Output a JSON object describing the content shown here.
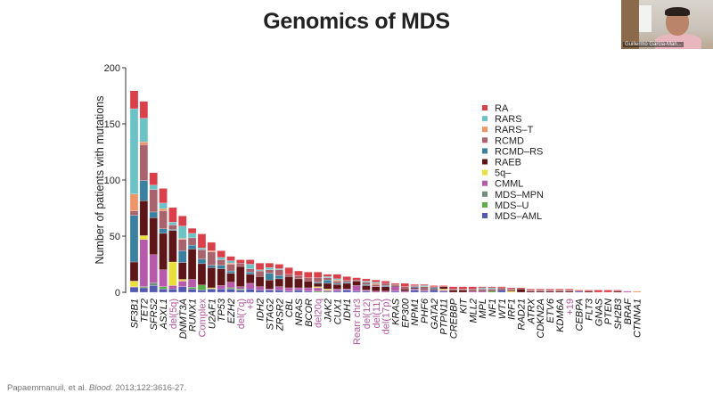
{
  "slide": {
    "title": "Genomics of MDS",
    "citation_prefix": "Papaemmanuil, et al. ",
    "citation_journal": "Blood.",
    "citation_suffix": " 2013;122:3616-27."
  },
  "video": {
    "participant_name": "Guillermo Garcia-Man..."
  },
  "chart_data": {
    "type": "bar",
    "stacked": true,
    "ylabel": "Number of patients with mutations",
    "xlabel": "",
    "ylim": [
      0,
      200
    ],
    "yticks": [
      0,
      50,
      100,
      150,
      200
    ],
    "legend_position": "top-right",
    "categories": [
      "SF3B1",
      "TET2",
      "SFRS2",
      "ASXL1",
      "del(5q)",
      "DNMT3A",
      "RUNX1",
      "Complex",
      "U2AF1",
      "TP53",
      "EZH2",
      "del(7q)",
      "+8",
      "IDH2",
      "STAG2",
      "ZRSR2",
      "CBL",
      "NRAS",
      "BCOR",
      "del20q",
      "JAK2",
      "CUX1",
      "IDH1",
      "Rearr chr3",
      "del(12)",
      "del(11)",
      "del(17p)",
      "KRAS",
      "EP300",
      "NPM1",
      "PHF6",
      "GATA2",
      "PTPN11",
      "CREBBP",
      "KIT",
      "MLL2",
      "MPL",
      "NF1",
      "WT1",
      "IRF1",
      "RAD21",
      "ATRX",
      "CDKN2A",
      "ETV6",
      "KDM6A",
      "+19",
      "CEBPA",
      "FLT3",
      "GNAS",
      "PTEN",
      "SH2B3",
      "BRAF",
      "CTNNA1"
    ],
    "cytogenetic_categories": [
      "del(5q)",
      "Complex",
      "del(7q)",
      "+8",
      "del20q",
      "Rearr chr3",
      "del(12)",
      "del(11)",
      "del(17p)",
      "+19"
    ],
    "cytogenetic_label_color": "#b0589e",
    "series": [
      {
        "name": "RA",
        "color": "#d9404a",
        "values": [
          16,
          15,
          11,
          13,
          13,
          9,
          4.5,
          12.5,
          7.5,
          6,
          4,
          3,
          4,
          6,
          4,
          4,
          6,
          4,
          5,
          5,
          2,
          4,
          3,
          2,
          2,
          2,
          2,
          1,
          3,
          1,
          1,
          1,
          1,
          2,
          2,
          2,
          1,
          1,
          1,
          1,
          1,
          1,
          1,
          1,
          1,
          1,
          1,
          1,
          2,
          2,
          1,
          0,
          0
        ]
      },
      {
        "name": "RARS",
        "color": "#6cc3c6",
        "values": [
          76,
          21,
          4,
          5,
          2.5,
          11,
          4,
          1.5,
          0,
          2,
          2,
          0,
          4,
          1,
          2,
          1,
          0,
          0,
          0,
          0,
          1,
          1,
          0,
          0,
          1,
          1,
          0,
          0,
          0,
          0,
          1,
          0,
          0,
          0,
          0,
          0,
          1,
          1,
          0,
          0,
          0,
          0,
          0,
          0,
          0,
          0,
          0,
          0,
          0,
          0,
          0,
          0,
          0
        ]
      },
      {
        "name": "RARS–T",
        "color": "#ee9466",
        "values": [
          15,
          2.5,
          0,
          2,
          0,
          1,
          0,
          0,
          1,
          0,
          1,
          0,
          0,
          0,
          0,
          0,
          0,
          0,
          0,
          0,
          0,
          1,
          0,
          0,
          0,
          1,
          0,
          0,
          0,
          0,
          0,
          0,
          0,
          0,
          0,
          0,
          0,
          0,
          0,
          0,
          0,
          0,
          0,
          0,
          0,
          0,
          0,
          0,
          0,
          0,
          0,
          0,
          1
        ]
      },
      {
        "name": "RCMD",
        "color": "#a8636d",
        "values": [
          4,
          32,
          20,
          16,
          4,
          10,
          6.5,
          8.5,
          12,
          5,
          6,
          3,
          3,
          5,
          3,
          5,
          2,
          3,
          3,
          4,
          2,
          2,
          2,
          1,
          2,
          2,
          2,
          1,
          2,
          1,
          2,
          1,
          0,
          1,
          1,
          1,
          1,
          1,
          1,
          1,
          0,
          1,
          1,
          1,
          1,
          1,
          0,
          0,
          0,
          0,
          0,
          0,
          0
        ]
      },
      {
        "name": "RCMD–RS",
        "color": "#3a80a0",
        "values": [
          41.5,
          18,
          5,
          4,
          1,
          10.5,
          3.5,
          4,
          2,
          3,
          2,
          0,
          2,
          0,
          6,
          3,
          0,
          0,
          0,
          1,
          3,
          1,
          1,
          0,
          1,
          0,
          1,
          0,
          0,
          1,
          0,
          1,
          0,
          0,
          0,
          0,
          0,
          0,
          0,
          0,
          0,
          0,
          0,
          0,
          0,
          0,
          0,
          0,
          0,
          0,
          0,
          0,
          0
        ]
      },
      {
        "name": "RAEB",
        "color": "#5e1518",
        "values": [
          17,
          31,
          33,
          32.5,
          28,
          15,
          27,
          19,
          18,
          15,
          8,
          18,
          8,
          9,
          8,
          7,
          10,
          8,
          6,
          3,
          5,
          4,
          5,
          4,
          4,
          4,
          4,
          1,
          2,
          1,
          1,
          1,
          2,
          2,
          2,
          1,
          1,
          1,
          1,
          1,
          3,
          1,
          1,
          1,
          1,
          1,
          0,
          1,
          0,
          0,
          1,
          0,
          0
        ]
      },
      {
        "name": "5q–",
        "color": "#e8de3c",
        "values": [
          5,
          3.5,
          0,
          0,
          21,
          1.5,
          0,
          0,
          1,
          0,
          0,
          0,
          0,
          0,
          0,
          0,
          0,
          0,
          0,
          1,
          1,
          0,
          0,
          0,
          0,
          0,
          0,
          0,
          0,
          0,
          0,
          0,
          1,
          0,
          0,
          0,
          0,
          0,
          0,
          1,
          0,
          0,
          0,
          0,
          0,
          0,
          0,
          0,
          0,
          0,
          0,
          0,
          0
        ]
      },
      {
        "name": "CMML",
        "color": "#b85aab",
        "values": [
          0.5,
          42,
          25,
          15,
          3,
          5,
          7,
          0,
          0,
          3,
          5,
          2,
          5,
          3,
          1,
          3,
          3,
          2,
          3,
          3,
          1,
          2,
          1,
          5,
          1,
          1,
          1,
          4,
          1,
          1,
          1,
          0,
          1,
          0,
          0,
          1,
          1,
          0,
          0,
          0,
          0,
          0,
          0,
          0,
          0,
          0,
          0,
          0,
          0,
          0,
          0,
          1,
          0
        ]
      },
      {
        "name": "MDS–MPN",
        "color": "#6f8f7c",
        "values": [
          0,
          0,
          2.5,
          0,
          0,
          0,
          0,
          0,
          0,
          0,
          0,
          0,
          0,
          0,
          0,
          0,
          0,
          0,
          0,
          0,
          1,
          0,
          0,
          0,
          0,
          0,
          0,
          0,
          0,
          0,
          0,
          0,
          0,
          0,
          0,
          0,
          0,
          0,
          0,
          0,
          0,
          0,
          0,
          0,
          0,
          0,
          0,
          0,
          0,
          0,
          0,
          0,
          0
        ]
      },
      {
        "name": "MDS–U",
        "color": "#5aaf48",
        "values": [
          0,
          1,
          0,
          2,
          0,
          0,
          1.5,
          4.5,
          0,
          0,
          1,
          1,
          0,
          0,
          0,
          0,
          0,
          0,
          0,
          1,
          0,
          0,
          0,
          0,
          0,
          0,
          0,
          0,
          0,
          0,
          0,
          0,
          0,
          0,
          0,
          0,
          0,
          1,
          0,
          0,
          0,
          0,
          0,
          0,
          0,
          0,
          0,
          0,
          0,
          0,
          0,
          0,
          0
        ]
      },
      {
        "name": "MDS–AML",
        "color": "#5359b0",
        "values": [
          4.5,
          4,
          6,
          3,
          3,
          5,
          3,
          2,
          3,
          3,
          3,
          2,
          3,
          2,
          2,
          2,
          1,
          2,
          1,
          0,
          0,
          1,
          2,
          1,
          1,
          0,
          0,
          1,
          0,
          2,
          1,
          2,
          1,
          0,
          0,
          0,
          0,
          0,
          2,
          0,
          0,
          0,
          0,
          0,
          0,
          0,
          1,
          0,
          0,
          0,
          0,
          0,
          0
        ]
      }
    ]
  }
}
